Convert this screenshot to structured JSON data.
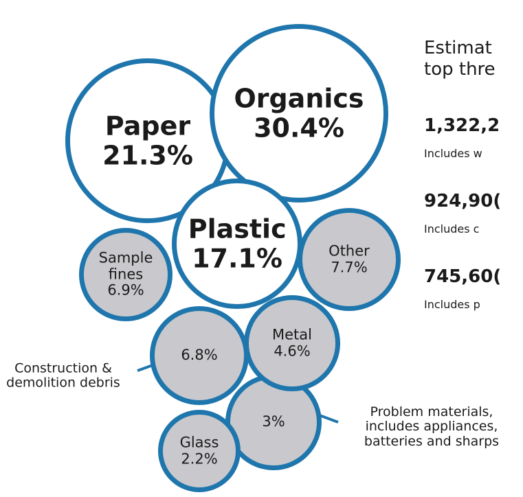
{
  "chart_data": {
    "type": "bubble",
    "categories": [
      "Organics",
      "Paper",
      "Plastic",
      "Other",
      "Sample fines",
      "Metal",
      "Construction & demolition debris",
      "Glass",
      "Problem materials, includes appliances, batteries and sharps"
    ],
    "values": [
      30.4,
      21.3,
      17.1,
      7.7,
      6.9,
      4.6,
      6.8,
      2.2,
      3
    ],
    "value_labels": [
      "30.4%",
      "21.3%",
      "17.1%",
      "7.7%",
      "6.9%",
      "4.6%",
      "6.8%",
      "2.2%",
      "3%"
    ],
    "colors": [
      "#ffffff",
      "#ffffff",
      "#ffffff",
      "#c9c9cd",
      "#c9c9cd",
      "#c9c9cd",
      "#c9c9cd",
      "#c9c9cd",
      "#c9c9cd"
    ],
    "border_color": "#1f76ad"
  },
  "side_text": {
    "heading": [
      "Estimat",
      "top thre"
    ],
    "items": [
      {
        "amount": "1,322,2",
        "note": "Includes w"
      },
      {
        "amount": "924,90(",
        "note": "Includes c"
      },
      {
        "amount": "745,60(",
        "note": "Includes p"
      }
    ]
  }
}
